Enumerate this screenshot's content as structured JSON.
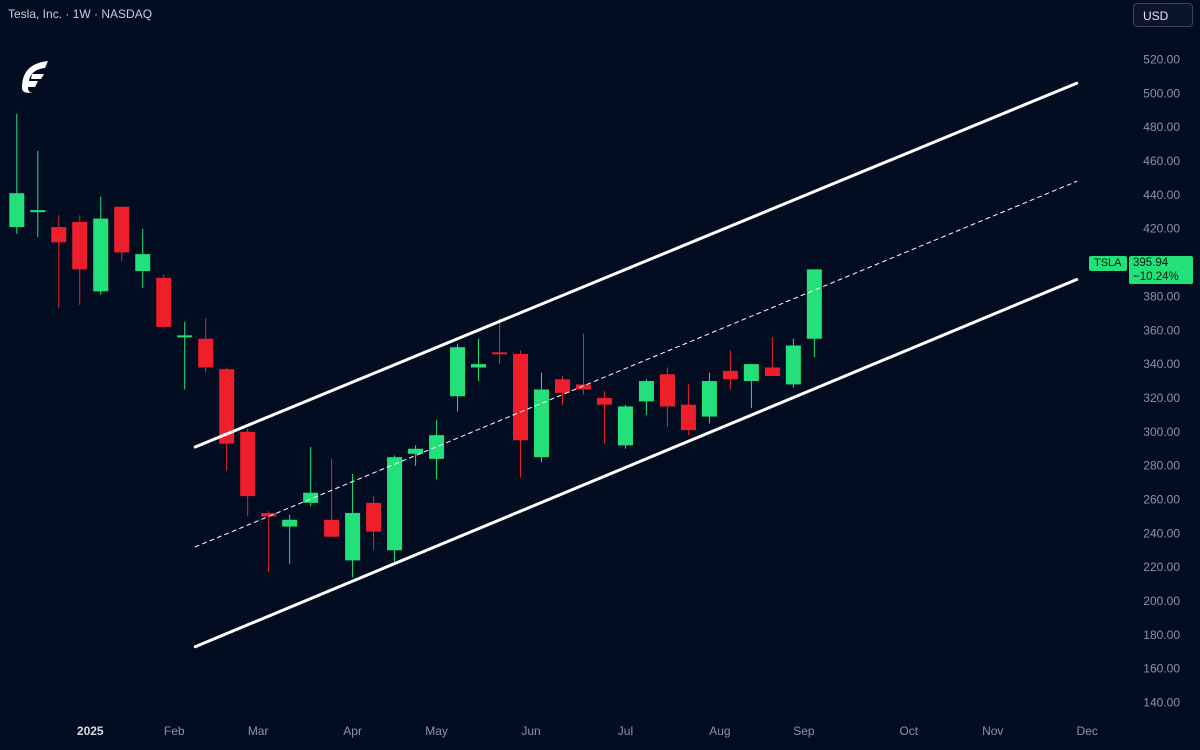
{
  "header": {
    "title": "Tesla, Inc. · 1W · NASDAQ",
    "currency": "USD"
  },
  "price_label": {
    "symbol": "TSLA",
    "price": "395.94",
    "change": "−10.24%"
  },
  "colors": {
    "background": "#030d22",
    "up": "#23e07a",
    "down": "#ee1f2b",
    "channel": "#ffffff",
    "axis_text": "#8a93a6"
  },
  "chart_data": {
    "type": "candlestick",
    "timeframe": "1W",
    "y_ticks": [
      "140.00",
      "160.00",
      "180.00",
      "200.00",
      "220.00",
      "240.00",
      "260.00",
      "280.00",
      "300.00",
      "320.00",
      "340.00",
      "360.00",
      "380.00",
      "400.00",
      "420.00",
      "440.00",
      "460.00",
      "480.00",
      "500.00",
      "520.00"
    ],
    "ylim": [
      135,
      528
    ],
    "x_labels": [
      {
        "label": "2025",
        "week": 3.5,
        "bold": true
      },
      {
        "label": "Feb",
        "week": 7.5
      },
      {
        "label": "Mar",
        "week": 11.5
      },
      {
        "label": "Apr",
        "week": 16
      },
      {
        "label": "May",
        "week": 20
      },
      {
        "label": "Jun",
        "week": 24.5
      },
      {
        "label": "Jul",
        "week": 29
      },
      {
        "label": "Aug",
        "week": 33.5
      },
      {
        "label": "Sep",
        "week": 37.5
      },
      {
        "label": "Oct",
        "week": 42.5
      },
      {
        "label": "Nov",
        "week": 46.5
      },
      {
        "label": "Dec",
        "week": 51
      }
    ],
    "xlim": [
      -0.8,
      52.8
    ],
    "candles": [
      {
        "o": 421,
        "h": 488,
        "l": 417,
        "c": 441
      },
      {
        "o": 431,
        "h": 466,
        "l": 415,
        "c": 431
      },
      {
        "o": 421,
        "h": 428,
        "l": 373,
        "c": 412
      },
      {
        "o": 424,
        "h": 428,
        "l": 375,
        "c": 396
      },
      {
        "o": 383,
        "h": 439,
        "l": 381,
        "c": 426
      },
      {
        "o": 433,
        "h": 433,
        "l": 401,
        "c": 406
      },
      {
        "o": 395,
        "h": 420,
        "l": 385,
        "c": 405
      },
      {
        "o": 391,
        "h": 393,
        "l": 361,
        "c": 362
      },
      {
        "o": 356,
        "h": 365,
        "l": 325,
        "c": 357
      },
      {
        "o": 355,
        "h": 367,
        "l": 335,
        "c": 338
      },
      {
        "o": 337,
        "h": 338,
        "l": 277,
        "c": 293
      },
      {
        "o": 300,
        "h": 302,
        "l": 250,
        "c": 262
      },
      {
        "o": 252,
        "h": 253,
        "l": 217,
        "c": 250
      },
      {
        "o": 244,
        "h": 251,
        "l": 222,
        "c": 248
      },
      {
        "o": 258,
        "h": 291,
        "l": 256,
        "c": 264
      },
      {
        "o": 248,
        "h": 284,
        "l": 239,
        "c": 238
      },
      {
        "o": 224,
        "h": 275,
        "l": 214,
        "c": 252
      },
      {
        "o": 258,
        "h": 262,
        "l": 230,
        "c": 241
      },
      {
        "o": 230,
        "h": 286,
        "l": 222,
        "c": 285
      },
      {
        "o": 287,
        "h": 292,
        "l": 280,
        "c": 290
      },
      {
        "o": 284,
        "h": 307,
        "l": 272,
        "c": 298
      },
      {
        "o": 321,
        "h": 352,
        "l": 312,
        "c": 350
      },
      {
        "o": 338,
        "h": 355,
        "l": 330,
        "c": 340
      },
      {
        "o": 347,
        "h": 367,
        "l": 340,
        "c": 346
      },
      {
        "o": 346,
        "h": 348,
        "l": 273,
        "c": 295
      },
      {
        "o": 285,
        "h": 335,
        "l": 282,
        "c": 325
      },
      {
        "o": 331,
        "h": 333,
        "l": 316,
        "c": 323
      },
      {
        "o": 328,
        "h": 358,
        "l": 322,
        "c": 325
      },
      {
        "o": 320,
        "h": 324,
        "l": 293,
        "c": 316
      },
      {
        "o": 292,
        "h": 316,
        "l": 290,
        "c": 315
      },
      {
        "o": 318,
        "h": 331,
        "l": 310,
        "c": 330
      },
      {
        "o": 334,
        "h": 338,
        "l": 303,
        "c": 315
      },
      {
        "o": 316,
        "h": 328,
        "l": 298,
        "c": 301
      },
      {
        "o": 309,
        "h": 335,
        "l": 305,
        "c": 330
      },
      {
        "o": 336,
        "h": 348,
        "l": 325,
        "c": 331
      },
      {
        "o": 330,
        "h": 340,
        "l": 314,
        "c": 340
      },
      {
        "o": 338,
        "h": 356,
        "l": 335,
        "c": 333
      },
      {
        "o": 328,
        "h": 355,
        "l": 326,
        "c": 351
      },
      {
        "o": 355,
        "h": 396,
        "l": 344,
        "c": 396
      }
    ],
    "channel": {
      "upper": [
        {
          "week": 8.5,
          "price": 291
        },
        {
          "week": 50.5,
          "price": 506
        }
      ],
      "middle": [
        {
          "week": 8.5,
          "price": 232
        },
        {
          "week": 50.5,
          "price": 448
        }
      ],
      "lower": [
        {
          "week": 8.5,
          "price": 173
        },
        {
          "week": 50.5,
          "price": 390
        }
      ]
    }
  }
}
